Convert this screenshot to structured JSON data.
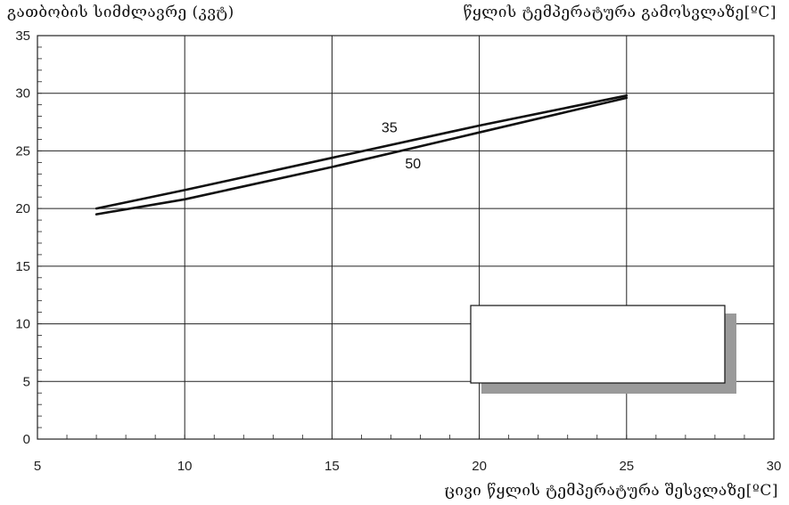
{
  "header": {
    "left_title": "გათბობის სიმძლავრე (კვტ)",
    "right_title": "წყლის ტემპერატურა გამოსვლაზე[ºC]"
  },
  "x_axis_title": "ცივი წყლის ტემპერატურა შესვლაზე[ºC]",
  "chart_data": {
    "type": "line",
    "xlim": [
      5,
      30
    ],
    "ylim": [
      0,
      35
    ],
    "xticks": [
      5,
      10,
      15,
      20,
      25,
      30
    ],
    "yticks": [
      0,
      5,
      10,
      15,
      20,
      25,
      30,
      35
    ],
    "grid": true,
    "ylabel": "გათბობის სიმძლავრე (კვტ)",
    "xlabel": "ცივი წყლის ტემპერატურა შესვლაზე[ºC]",
    "series": [
      {
        "name": "35",
        "x": [
          7,
          10,
          15,
          20,
          25
        ],
        "y": [
          20.0,
          21.6,
          24.4,
          27.2,
          29.8
        ]
      },
      {
        "name": "50",
        "x": [
          7,
          10,
          15,
          20,
          25
        ],
        "y": [
          19.5,
          20.8,
          23.6,
          26.6,
          29.6
        ]
      }
    ],
    "colors": {
      "line": "#111111",
      "grid": "#222222",
      "legend_shadow": "#9a9a9a"
    }
  }
}
